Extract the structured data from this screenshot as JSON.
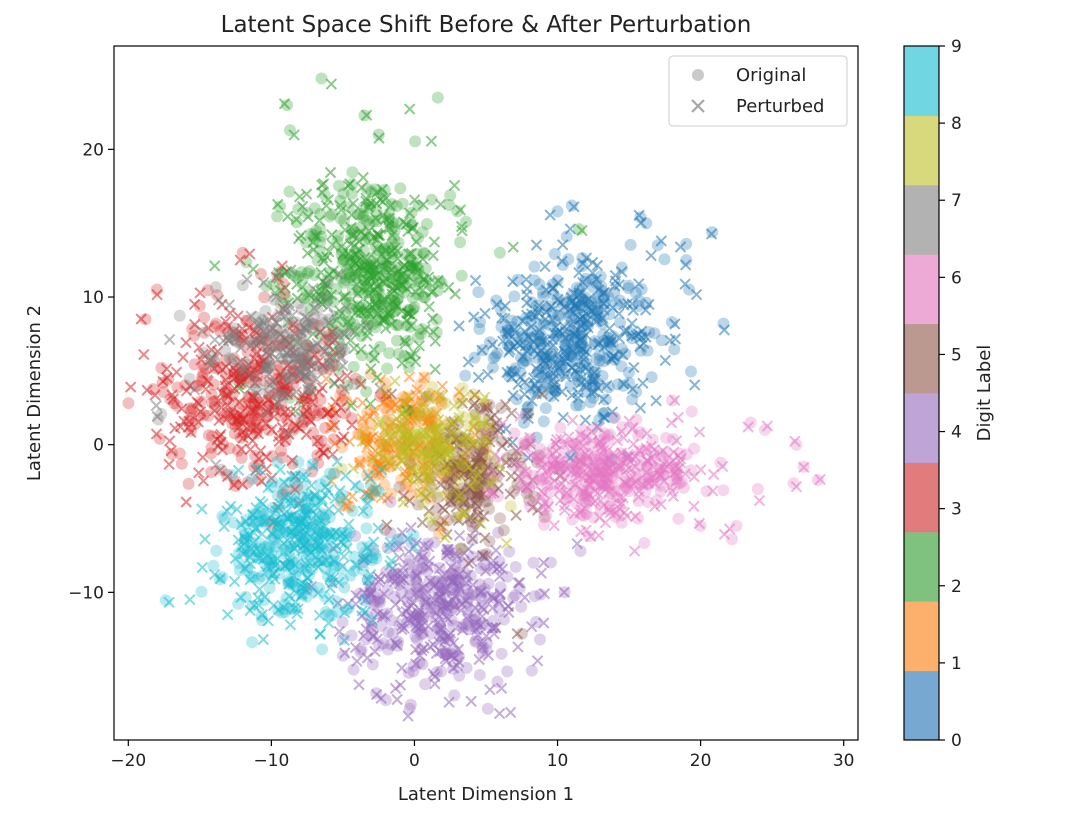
{
  "chart_data": {
    "type": "scatter",
    "title": "Latent Space Shift Before & After Perturbation",
    "xlabel": "Latent Dimension 1",
    "ylabel": "Latent Dimension 2",
    "xlim": [
      -21,
      31
    ],
    "ylim": [
      -20,
      27
    ],
    "xticks": [
      -20,
      -10,
      0,
      10,
      20,
      30
    ],
    "yticks": [
      -10,
      0,
      10,
      20
    ],
    "xtick_labels": [
      "−20",
      "−10",
      "0",
      "10",
      "20",
      "30"
    ],
    "ytick_labels": [
      "−10",
      "0",
      "10",
      "20"
    ],
    "grid": false,
    "legend": {
      "location": "top-right",
      "entries": [
        {
          "label": "Original",
          "marker": "circle",
          "color": "#a6a6a6"
        },
        {
          "label": "Perturbed",
          "marker": "x",
          "color": "#a6a6a6"
        }
      ]
    },
    "colorbar": {
      "label": "Digit Label",
      "ticks": [
        "0",
        "1",
        "2",
        "3",
        "4",
        "5",
        "6",
        "7",
        "8",
        "9"
      ],
      "colors": [
        "#76a8d2",
        "#fdb06b",
        "#7fc27f",
        "#e27c7c",
        "#bfa5d7",
        "#bb9890",
        "#eeaad7",
        "#b2b2b2",
        "#d8d87c",
        "#70d6e2"
      ]
    },
    "series": [
      {
        "digit": 0,
        "name": "0",
        "color": "#1f77b4",
        "center": [
          11,
          7
        ],
        "spread": [
          3,
          2.8
        ],
        "n": 260,
        "outliers": [
          [
            10,
            15.8
          ],
          [
            11,
            16.2
          ],
          [
            15.8,
            15.4
          ],
          [
            16.2,
            15
          ],
          [
            17,
            13.5
          ],
          [
            19,
            13.6
          ],
          [
            19,
            12.5
          ],
          [
            20.8,
            14.4
          ],
          [
            21.6,
            8.2
          ],
          [
            19.2,
            10.5
          ],
          [
            18,
            8.3
          ]
        ]
      },
      {
        "digit": 1,
        "name": "1",
        "color": "#ff7f0e",
        "center": [
          -1,
          0
        ],
        "spread": [
          2,
          2
        ],
        "n": 130,
        "outliers": []
      },
      {
        "digit": 2,
        "name": "2",
        "color": "#2ca02c",
        "center": [
          -3,
          11.5
        ],
        "spread": [
          2.8,
          3.5
        ],
        "n": 280,
        "outliers": [
          [
            -6.5,
            24.8
          ],
          [
            -8.9,
            23
          ],
          [
            -8.7,
            21.3
          ],
          [
            -3.5,
            22.3
          ],
          [
            -2.5,
            21
          ],
          [
            1.2,
            16.6
          ],
          [
            3,
            15.8
          ],
          [
            3.6,
            15.1
          ],
          [
            11.5,
            14.6
          ]
        ]
      },
      {
        "digit": 3,
        "name": "3",
        "color": "#d62728",
        "center": [
          -11,
          3.5
        ],
        "spread": [
          3,
          2.8
        ],
        "n": 240,
        "outliers": [
          [
            -12,
            13
          ],
          [
            -18.8,
            8.5
          ],
          [
            -18,
            10.5
          ],
          [
            -17.6,
            4.2
          ],
          [
            -17.8,
            0.4
          ],
          [
            -16.4,
            -0.6
          ],
          [
            -12.5,
            -2.8
          ],
          [
            -10,
            -5.4
          ],
          [
            -15,
            9.4
          ]
        ]
      },
      {
        "digit": 4,
        "name": "4",
        "color": "#9467bd",
        "center": [
          1.5,
          -11
        ],
        "spread": [
          2.8,
          2.6
        ],
        "n": 240,
        "outliers": [
          [
            -2,
            -17.3
          ],
          [
            8.2,
            -15.3
          ],
          [
            10.5,
            -10
          ],
          [
            11.6,
            -7.2
          ],
          [
            -5,
            -14.3
          ],
          [
            8.5,
            -12
          ]
        ]
      },
      {
        "digit": 5,
        "name": "5",
        "color": "#8c564b",
        "center": [
          4,
          -2
        ],
        "spread": [
          2,
          2.2
        ],
        "n": 130,
        "outliers": [
          [
            7.5,
            -12.8
          ]
        ]
      },
      {
        "digit": 6,
        "name": "6",
        "color": "#e377c2",
        "center": [
          13,
          -2
        ],
        "spread": [
          3.5,
          1.5
        ],
        "n": 220,
        "outliers": [
          [
            23.5,
            1.5
          ],
          [
            24.5,
            1
          ],
          [
            26.7,
            0
          ],
          [
            27.2,
            -1.5
          ],
          [
            28.2,
            -2.4
          ],
          [
            26.5,
            -2.6
          ],
          [
            24,
            -3
          ],
          [
            22.5,
            -5.5
          ],
          [
            22.2,
            -6.4
          ],
          [
            20,
            -5.5
          ],
          [
            18,
            3
          ]
        ]
      },
      {
        "digit": 7,
        "name": "7",
        "color": "#7f7f7f",
        "center": [
          -9,
          6.5
        ],
        "spread": [
          2.5,
          1.8
        ],
        "n": 110,
        "outliers": [
          [
            -17.7,
            2.1
          ],
          [
            -17.9,
            1.7
          ],
          [
            -13.5,
            -1.7
          ],
          [
            -12,
            10.8
          ]
        ]
      },
      {
        "digit": 8,
        "name": "8",
        "color": "#bcbd22",
        "center": [
          1,
          0
        ],
        "spread": [
          2.2,
          2
        ],
        "n": 110,
        "outliers": []
      },
      {
        "digit": 9,
        "name": "9",
        "color": "#17becf",
        "center": [
          -8,
          -7
        ],
        "spread": [
          2.6,
          2.4
        ],
        "n": 240,
        "outliers": [
          [
            -12.2,
            -8.5
          ],
          [
            -11.8,
            -10.3
          ],
          [
            -6,
            -11.5
          ],
          [
            -12,
            -7
          ]
        ]
      }
    ]
  }
}
